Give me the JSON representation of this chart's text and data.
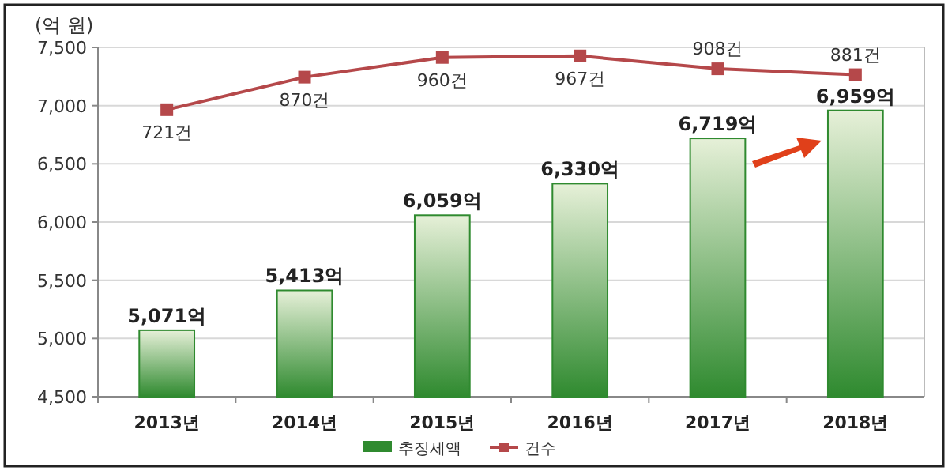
{
  "chart_data": {
    "type": "bar",
    "ylabel": "(억 원)",
    "categories": [
      "2013년",
      "2014년",
      "2015년",
      "2016년",
      "2017년",
      "2018년"
    ],
    "series": [
      {
        "name": "추징세액",
        "color": "#2f8a2f",
        "values": [
          5071,
          5413,
          6059,
          6330,
          6719,
          6959
        ],
        "value_labels": [
          "5,071억",
          "5,413억",
          "6,059억",
          "6,330억",
          "6,719억",
          "6,959억"
        ]
      },
      {
        "name": "건수",
        "type": "line",
        "axis": "y2",
        "color": "#b5484a",
        "marker": "square",
        "values": [
          721,
          870,
          960,
          967,
          908,
          881
        ],
        "value_labels": [
          "721건",
          "870건",
          "960건",
          "967건",
          "908건",
          "881건"
        ]
      }
    ],
    "ylim": [
      4500,
      7500
    ],
    "yticks": [
      {
        "value": 4500,
        "label": "4,500"
      },
      {
        "value": 5000,
        "label": "5,000"
      },
      {
        "value": 5500,
        "label": "5,500"
      },
      {
        "value": 6000,
        "label": "6,000"
      },
      {
        "value": 6500,
        "label": "6,500"
      },
      {
        "value": 7000,
        "label": "7,000"
      },
      {
        "value": 7500,
        "label": "7,500"
      }
    ],
    "y2lim": [
      -592,
      1006
    ],
    "tick_labels": [
      "x",
      "y"
    ],
    "grid": "y",
    "legend": "bottom"
  }
}
